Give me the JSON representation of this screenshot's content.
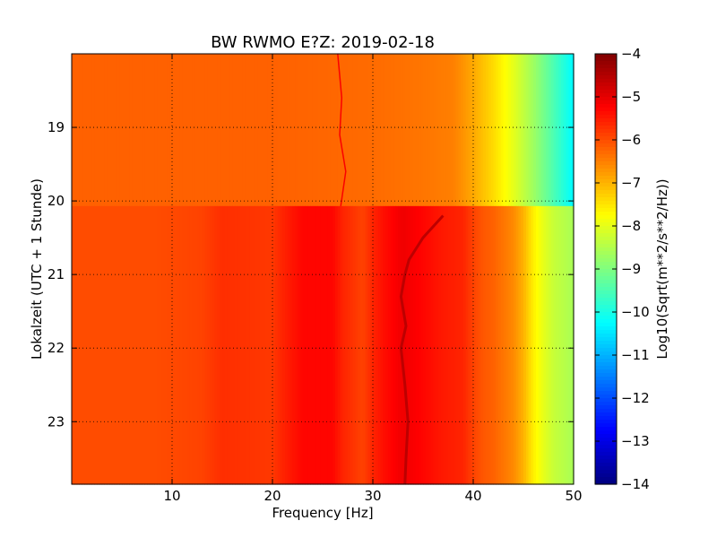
{
  "chart_data": {
    "type": "heatmap",
    "title": "BW RWMO E?Z: 2019-02-18",
    "xlabel": "Frequency [Hz]",
    "ylabel": "Lokalzeit (UTC + 1 Stunde)",
    "xlim": [
      0,
      50
    ],
    "ylim": [
      23.85,
      18.0
    ],
    "x_ticks": [
      10,
      20,
      30,
      40,
      50
    ],
    "x_tick_labels": [
      "10",
      "20",
      "30",
      "40",
      "50"
    ],
    "y_ticks": [
      19,
      20,
      21,
      22,
      23
    ],
    "y_tick_labels": [
      "19",
      "20",
      "21",
      "22",
      "23"
    ],
    "grid": true,
    "colorbar": {
      "label": "Log10(Sqrt(m**2/s**2/Hz))",
      "range": [
        -14,
        -4
      ],
      "ticks": [
        -4,
        -5,
        -6,
        -7,
        -8,
        -9,
        -10,
        -11,
        -12,
        -13,
        -14
      ],
      "tick_labels": [
        "−4",
        "−5",
        "−6",
        "−7",
        "−8",
        "−9",
        "−10",
        "−11",
        "−12",
        "−13",
        "−14"
      ],
      "colormap": "jet"
    },
    "frequency_profiles": [
      {
        "time_range": [
          18.0,
          20.07
        ],
        "points": [
          [
            0,
            -6.2
          ],
          [
            10,
            -6.2
          ],
          [
            20,
            -6.2
          ],
          [
            30,
            -6.3
          ],
          [
            35,
            -6.4
          ],
          [
            38,
            -6.5
          ],
          [
            40,
            -6.9
          ],
          [
            42,
            -7.4
          ],
          [
            44,
            -8.0
          ],
          [
            46,
            -8.7
          ],
          [
            48,
            -9.5
          ],
          [
            50,
            -10.3
          ]
        ]
      },
      {
        "time_range": [
          20.07,
          23.85
        ],
        "points": [
          [
            0,
            -6.0
          ],
          [
            8,
            -6.0
          ],
          [
            13,
            -5.9
          ],
          [
            15,
            -5.7
          ],
          [
            20,
            -5.8
          ],
          [
            21,
            -5.6
          ],
          [
            23,
            -5.3
          ],
          [
            26,
            -5.3
          ],
          [
            27,
            -5.6
          ],
          [
            29,
            -5.9
          ],
          [
            30,
            -5.6
          ],
          [
            31,
            -5.4
          ],
          [
            33,
            -5.1
          ],
          [
            34,
            -5.2
          ],
          [
            37,
            -5.5
          ],
          [
            39,
            -5.6
          ],
          [
            40,
            -5.9
          ],
          [
            41,
            -6.1
          ],
          [
            42,
            -6.2
          ],
          [
            44,
            -6.6
          ],
          [
            45,
            -7.0
          ],
          [
            46,
            -7.6
          ],
          [
            47,
            -8.0
          ],
          [
            48,
            -8.3
          ],
          [
            50,
            -8.6
          ]
        ]
      }
    ],
    "tremor_line": {
      "value": -4.6,
      "points": [
        [
          37,
          20.2
        ],
        [
          35,
          20.5
        ],
        [
          33.6,
          20.8
        ],
        [
          33.2,
          21.0
        ],
        [
          32.8,
          21.3
        ],
        [
          33.3,
          21.7
        ],
        [
          32.8,
          22.0
        ],
        [
          33.2,
          22.5
        ],
        [
          33.5,
          23.0
        ],
        [
          33.3,
          23.5
        ],
        [
          33.2,
          23.85
        ]
      ]
    },
    "hum_line": {
      "value": -5.2,
      "points": [
        [
          26.5,
          18.0
        ],
        [
          26.9,
          18.6
        ],
        [
          26.7,
          19.1
        ],
        [
          27.3,
          19.6
        ],
        [
          26.8,
          20.07
        ]
      ]
    }
  }
}
